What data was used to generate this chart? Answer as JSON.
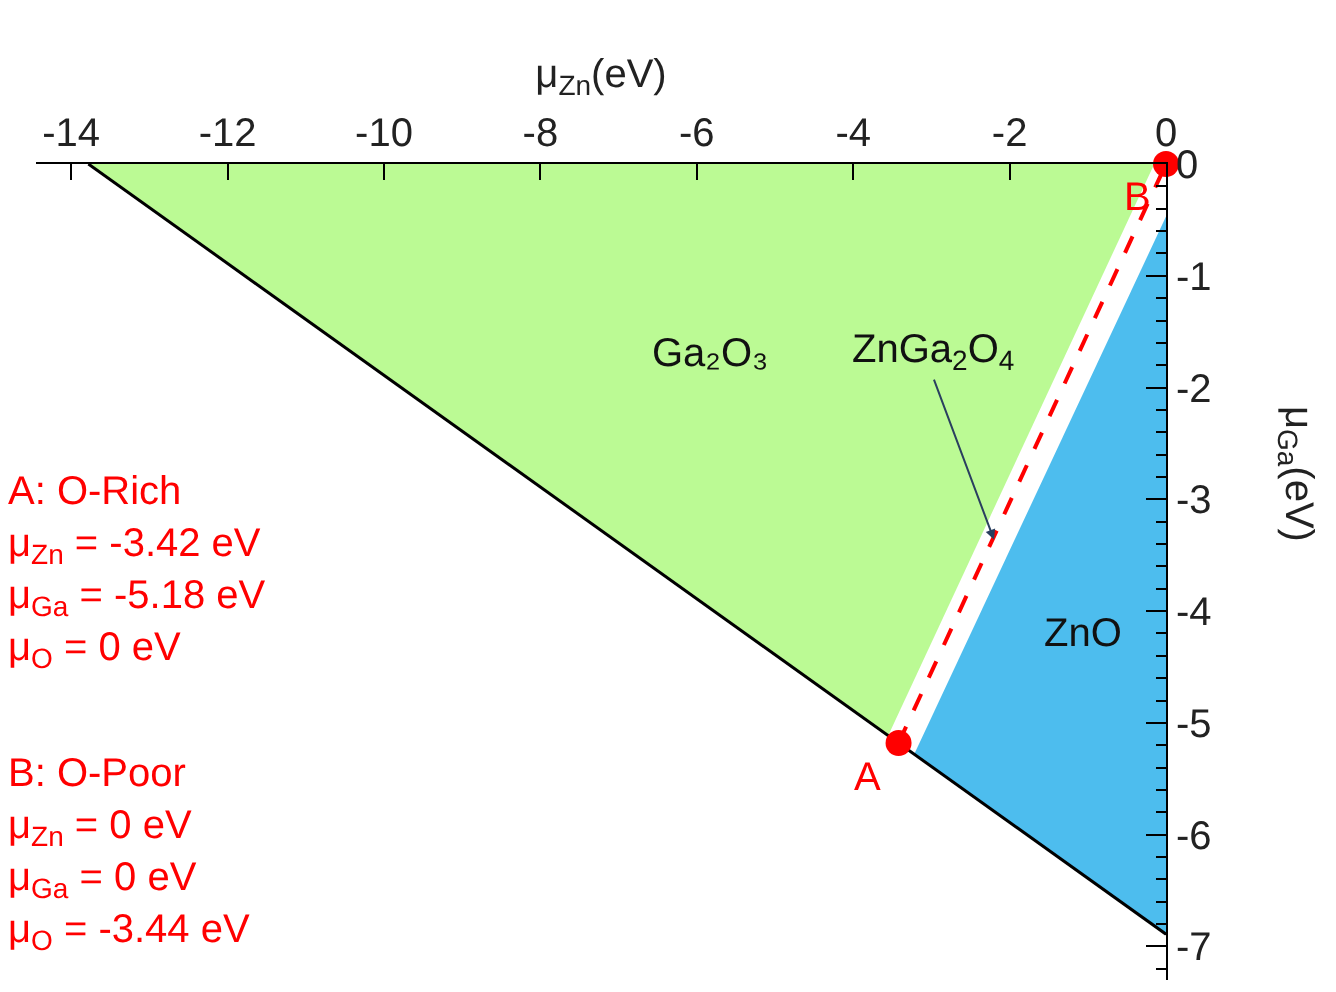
{
  "chart_data": {
    "type": "area",
    "xlabel": "μ$_{Zn}$(eV)",
    "ylabel": "μ$_{Ga}$(eV)",
    "xlim": [
      -14.45,
      0
    ],
    "ylim": [
      -7.3,
      0
    ],
    "xticks": [
      -14,
      -12,
      -10,
      -8,
      -6,
      -4,
      -2,
      0
    ],
    "yticks": [
      0,
      -1,
      -2,
      -3,
      -4,
      -5,
      -6,
      -7
    ],
    "legend": false,
    "series": [
      {
        "name": "Ga₂O₃",
        "color": "#bbfa94",
        "x": [
          -13.78,
          -0.15,
          -3.55
        ],
        "values": [
          0,
          0,
          -5.11
        ]
      },
      {
        "name": "ZnO",
        "color": "#4dbdee",
        "x": [
          0,
          -3.22,
          0
        ],
        "values": [
          -0.47,
          -5.28,
          -6.89
        ]
      },
      {
        "type": "line",
        "color": "#000000",
        "x": [
          -13.78,
          0
        ],
        "values": [
          0,
          -6.89
        ]
      },
      {
        "type": "line",
        "color": "#ff0000",
        "line_style": "dashed",
        "x": [
          -3.42,
          0
        ],
        "values": [
          -5.18,
          0
        ]
      },
      {
        "type": "scatter",
        "color": "#ff0000",
        "marker": "circle",
        "x": [
          -3.42,
          0
        ],
        "values": [
          -5.18,
          0
        ]
      }
    ],
    "annotations": [
      {
        "text": "ZnGa$_{2}$O$_{4}$",
        "x": -2.2,
        "y": -3.36
      },
      {
        "text": "A",
        "x": -3.42,
        "y": -5.18
      },
      {
        "text": "B",
        "x": 0,
        "y": 0
      },
      "A: O-Rich\nμ$_{Zn}$ = -3.42 eV\nμ$_{Ga}$ = -5.18 eV\nμ$_{O}$ = 0 eV",
      "B: O-Poor\nμ$_{Zn}$ = 0 eV\nμ$_{Ga}$ = 0 eV\nμ$_{O}$ = -3.44 eV"
    ]
  }
}
